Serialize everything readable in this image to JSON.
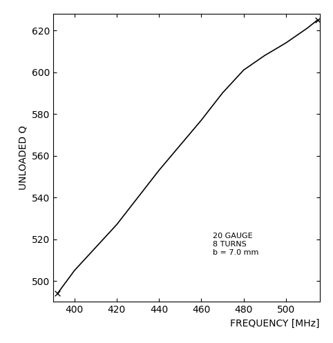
{
  "chart_data": {
    "type": "line",
    "x_label": "FREQUENCY [MHz]",
    "y_label": "UNLOADED Q",
    "annotation": "20 GAUGE\n8 TURNS\nb = 7.0 mm",
    "xlim": [
      390,
      516
    ],
    "xticks": [
      400,
      420,
      440,
      460,
      480,
      500
    ],
    "ylim": [
      490,
      628
    ],
    "yticks": [
      500,
      520,
      540,
      560,
      580,
      600,
      620
    ],
    "grid": false,
    "series": [
      {
        "type": "line",
        "color": "#000000",
        "line_style": "solid",
        "x": [
          392,
          400,
          410,
          420,
          430,
          440,
          450,
          460,
          470,
          480,
          490,
          500,
          510,
          515
        ],
        "values": [
          494,
          505,
          516,
          527,
          540,
          553,
          565,
          577,
          590,
          601,
          608,
          614,
          621,
          625
        ]
      },
      {
        "type": "scatter",
        "color": "#000000",
        "marker": "x",
        "x": [
          392,
          515
        ],
        "values": [
          494,
          625
        ]
      }
    ]
  }
}
